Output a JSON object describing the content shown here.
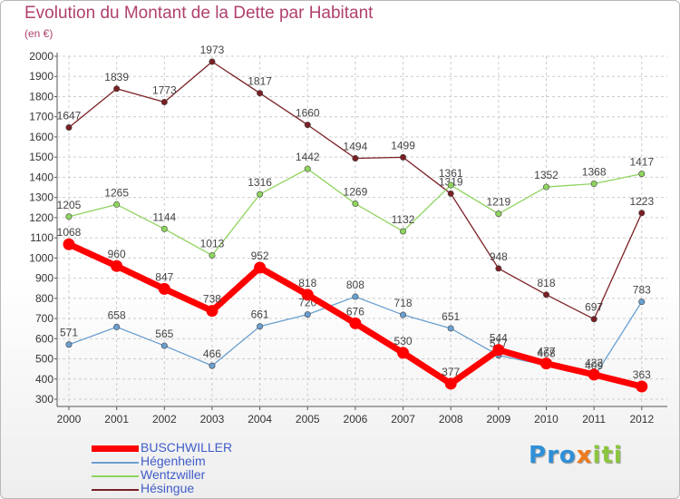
{
  "title": "Evolution du Montant de la Dette par Habitant",
  "unit_label": "(en €)",
  "logo": {
    "text": "Proxiti",
    "letters": [
      "P",
      "r",
      "o",
      "x",
      "i",
      "t",
      "i"
    ],
    "colors": [
      "#2f8fd8",
      "#2f8fd8",
      "#2f8fd8",
      "#f07a1a",
      "#8cc63e",
      "#8cc63e",
      "#8cc63e"
    ]
  },
  "chart_data": {
    "type": "line",
    "categories": [
      "2000",
      "2001",
      "2002",
      "2003",
      "2004",
      "2005",
      "2006",
      "2007",
      "2008",
      "2009",
      "2010",
      "2011",
      "2012"
    ],
    "ylim": [
      300,
      2000
    ],
    "yticks": [
      300,
      400,
      500,
      600,
      700,
      800,
      900,
      1000,
      1100,
      1200,
      1300,
      1400,
      1500,
      1600,
      1700,
      1800,
      1900,
      2000
    ],
    "grid": true,
    "legend_position": "bottom-left",
    "series": [
      {
        "name": "Hésingue",
        "color": "#7a1f24",
        "values": [
          1647,
          1839,
          1773,
          1973,
          1817,
          1660,
          1494,
          1499,
          1319,
          948,
          818,
          697,
          1223
        ]
      },
      {
        "name": "Wentzwiller",
        "color": "#8fd45e",
        "values": [
          1205,
          1265,
          1144,
          1013,
          1316,
          1442,
          1269,
          1132,
          1361,
          1219,
          1352,
          1368,
          1417
        ]
      },
      {
        "name": "Hégenheim",
        "color": "#6a9fd0",
        "values": [
          571,
          658,
          565,
          466,
          661,
          720,
          808,
          718,
          651,
          517,
          468,
          409,
          783
        ]
      },
      {
        "name": "BUSCHWILLER",
        "color": "#ff0000",
        "values": [
          1068,
          960,
          847,
          738,
          952,
          818,
          676,
          530,
          377,
          544,
          477,
          422,
          363
        ]
      }
    ],
    "legend_order": [
      "BUSCHWILLER",
      "Hégenheim",
      "Wentzwiller",
      "Hésingue"
    ]
  }
}
